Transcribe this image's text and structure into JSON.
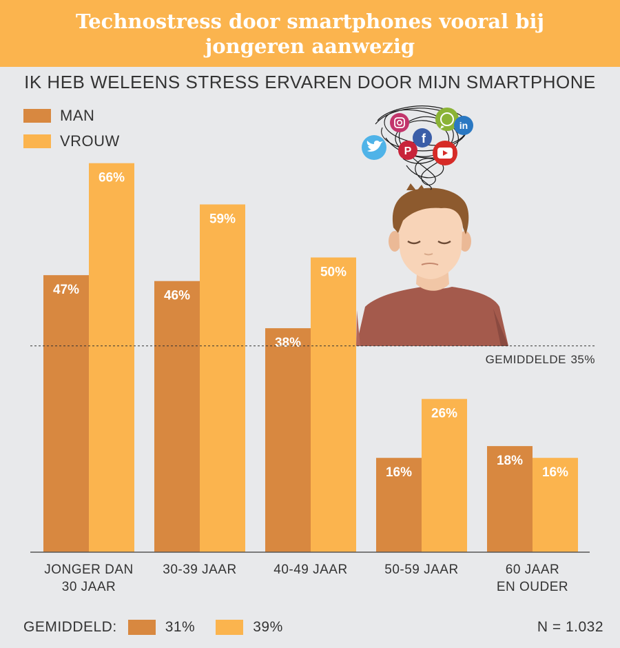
{
  "header": {
    "title": "Technostress door smartphones vooral bij jongeren aanwezig",
    "subtitle": "IK HEB WELEENS STRESS ERVAREN DOOR MIJN SMARTPHONE"
  },
  "colors": {
    "man": "#d88840",
    "vrouw": "#fbb44e",
    "banner": "#fbb44e",
    "background": "#e8e9eb"
  },
  "chart_data": {
    "type": "bar",
    "categories": [
      "JONGER DAN 30 JAAR",
      "30-39 JAAR",
      "40-49 JAAR",
      "50-59 JAAR",
      "60 JAAR EN OUDER"
    ],
    "category_lines": [
      [
        "JONGER DAN",
        "30 JAAR"
      ],
      [
        "30-39 JAAR"
      ],
      [
        "40-49 JAAR"
      ],
      [
        "50-59 JAAR"
      ],
      [
        "60 JAAR",
        "EN OUDER"
      ]
    ],
    "series": [
      {
        "name": "MAN",
        "values": [
          47,
          46,
          38,
          16,
          18
        ],
        "color": "#d88840"
      },
      {
        "name": "VROUW",
        "values": [
          66,
          59,
          50,
          26,
          16
        ],
        "color": "#fbb44e"
      }
    ],
    "value_suffix": "%",
    "ylim": [
      0,
      100
    ],
    "reference_line": {
      "label": "GEMIDDELDE",
      "value": 35,
      "display": "35%"
    },
    "legend_position": "top-left"
  },
  "footer": {
    "average_label": "GEMIDDELD:",
    "man_average": "31%",
    "vrouw_average": "39%",
    "sample": "N = 1.032"
  },
  "illustration": {
    "icons": [
      "instagram-icon",
      "whatsapp-icon",
      "linkedin-icon",
      "twitter-icon",
      "facebook-icon",
      "pinterest-icon",
      "youtube-icon"
    ]
  }
}
